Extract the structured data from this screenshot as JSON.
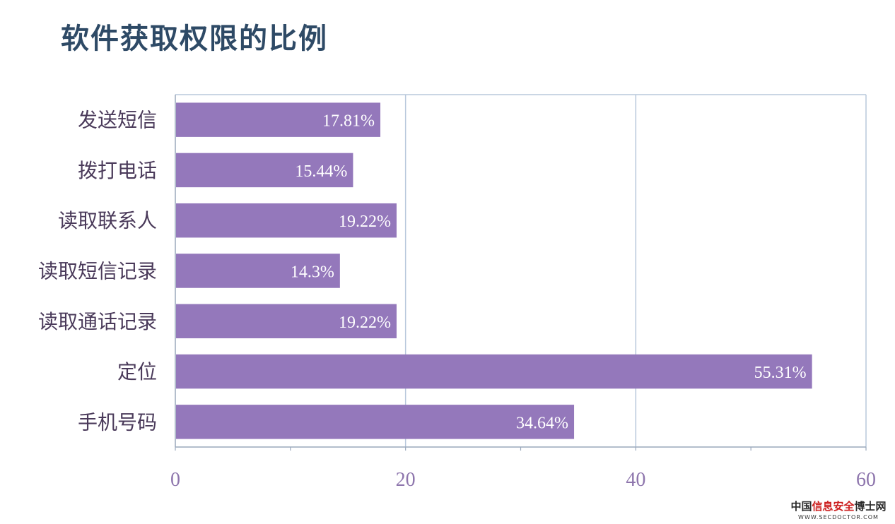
{
  "title": "软件获取权限的比例",
  "chart_data": {
    "type": "bar",
    "orientation": "horizontal",
    "categories": [
      "发送短信",
      "拨打电话",
      "读取联系人",
      "读取短信记录",
      "读取通话记录",
      "定位",
      "手机号码"
    ],
    "values": [
      17.81,
      15.44,
      19.22,
      14.3,
      19.22,
      55.31,
      34.64
    ],
    "data_labels": [
      "17.81%",
      "15.44%",
      "19.22%",
      "14.3%",
      "19.22%",
      "55.31%",
      "34.64%"
    ],
    "xlim": [
      0,
      60
    ],
    "x_ticks": [
      0,
      20,
      40,
      60
    ],
    "x_tick_labels": [
      "0",
      "20",
      "40",
      "60"
    ],
    "grid": true,
    "title": "",
    "xlabel": "",
    "ylabel": "",
    "colors": {
      "bar": "#9478bb",
      "grid": "#b8c8dc",
      "tick_text": "#8e76ad"
    }
  },
  "watermark": {
    "brand_pre": "中国",
    "brand_red": "信息安全",
    "brand_post": "博士网",
    "url": "WWW.SECDOCTOR.COM"
  }
}
